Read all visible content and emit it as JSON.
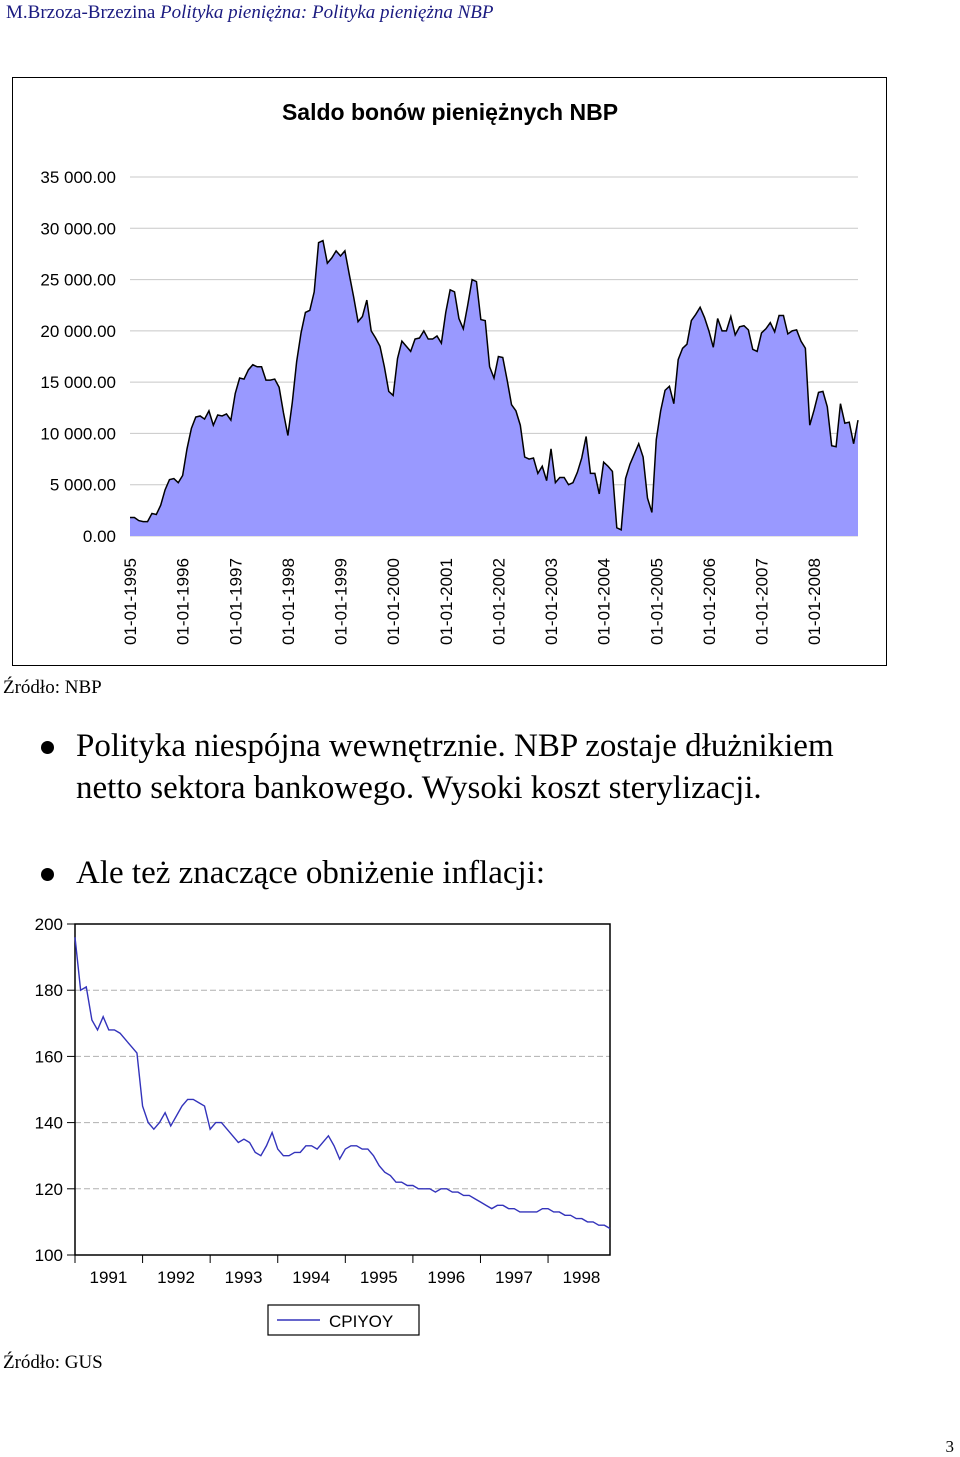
{
  "header": {
    "author": "M.Brzoza-Brzezina",
    "title": "Polityka pieniężna: Polityka pieniężna NBP"
  },
  "chart_data": [
    {
      "type": "area",
      "title": "Saldo bonów pieniężnych NBP",
      "ylim": [
        0,
        35000
      ],
      "yticks": [
        "0.00",
        "5 000.00",
        "10 000.00",
        "15 000.00",
        "20 000.00",
        "25 000.00",
        "30 000.00",
        "35 000.00"
      ],
      "ytick_values": [
        0,
        5000,
        10000,
        15000,
        20000,
        25000,
        30000,
        35000
      ],
      "xticks": [
        "01-01-1995",
        "01-01-1996",
        "01-01-1997",
        "01-01-1998",
        "01-01-1999",
        "01-01-2000",
        "01-01-2001",
        "01-01-2002",
        "01-01-2003",
        "01-01-2004",
        "01-01-2005",
        "01-01-2006",
        "01-01-2007",
        "01-01-2008"
      ],
      "x_start": "1995-01",
      "x_step": "month",
      "grid": true,
      "fill_color": "#9999ff",
      "values": [
        1800,
        1800,
        1500,
        1400,
        1400,
        2200,
        2100,
        3000,
        4500,
        5500,
        5600,
        5200,
        5900,
        8500,
        10500,
        11600,
        11700,
        11400,
        12200,
        10800,
        11800,
        11700,
        11900,
        11300,
        13900,
        15400,
        15300,
        16200,
        16700,
        16500,
        16500,
        15200,
        15200,
        15300,
        14500,
        12000,
        9800,
        13000,
        17000,
        19800,
        21800,
        22000,
        23800,
        28600,
        28800,
        26600,
        27100,
        27800,
        27300,
        27800,
        25500,
        23300,
        20900,
        21400,
        23000,
        20000,
        19300,
        18500,
        16500,
        14100,
        13700,
        17300,
        19000,
        18500,
        18000,
        19200,
        19300,
        20000,
        19200,
        19200,
        19500,
        18800,
        21800,
        24000,
        23800,
        21200,
        20200,
        22500,
        25000,
        24800,
        21100,
        21000,
        16500,
        15400,
        17500,
        17400,
        15200,
        12800,
        12200,
        10800,
        7700,
        7500,
        7600,
        6100,
        6800,
        5400,
        8500,
        5200,
        5700,
        5700,
        5000,
        5200,
        6200,
        7600,
        9700,
        6100,
        6100,
        4100,
        7200,
        6800,
        6300,
        800,
        600,
        5600,
        7000,
        8000,
        9000,
        7700,
        3700,
        2300,
        9400,
        12200,
        14200,
        14600,
        12900,
        17200,
        18300,
        18700,
        21000,
        21600,
        22300,
        21300,
        20000,
        18400,
        21200,
        20000,
        20000,
        21400,
        19600,
        20400,
        20500,
        20100,
        18200,
        18000,
        19800,
        20200,
        20800,
        19900,
        21500,
        21500,
        19700,
        20000,
        20100,
        19000,
        18300,
        10800,
        12300,
        14000,
        14100,
        12600,
        8800,
        8700,
        12900,
        11000,
        11100,
        9000,
        11300
      ]
    },
    {
      "type": "line",
      "ylim": [
        100,
        200
      ],
      "yticks": [
        "100",
        "120",
        "140",
        "160",
        "180",
        "200"
      ],
      "ytick_values": [
        100,
        120,
        140,
        160,
        180,
        200
      ],
      "xticks": [
        "1991",
        "1992",
        "1993",
        "1994",
        "1995",
        "1996",
        "1997",
        "1998"
      ],
      "x_start": "1991-01",
      "x_step": "month",
      "grid": true,
      "series": [
        {
          "name": "CPIYOY",
          "color": "#3333bb",
          "values": [
            196,
            180,
            181,
            171,
            168,
            172,
            168,
            168,
            167,
            165,
            163,
            161,
            145,
            140,
            138,
            140,
            143,
            139,
            142,
            145,
            147,
            147,
            146,
            145,
            138,
            140,
            140,
            138,
            136,
            134,
            135,
            134,
            131,
            130,
            133,
            137,
            132,
            130,
            130,
            131,
            131,
            133,
            133,
            132,
            134,
            136,
            133,
            129,
            132,
            133,
            133,
            132,
            132,
            130,
            127,
            125,
            124,
            122,
            122,
            121,
            121,
            120,
            120,
            120,
            119,
            120,
            120,
            119,
            119,
            118,
            118,
            117,
            116,
            115,
            114,
            115,
            115,
            114,
            114,
            113,
            113,
            113,
            113,
            114,
            114,
            113,
            113,
            112,
            112,
            111,
            111,
            110,
            110,
            109,
            109,
            108
          ]
        }
      ]
    }
  ],
  "sources": {
    "nbp": "Źródło: NBP",
    "gus": "Źródło: GUS"
  },
  "bullets": [
    [
      "Polityka niespójna wewnętrznie. NBP zostaje dłużnikiem",
      "netto sektora bankowego. Wysoki koszt sterylizacji."
    ],
    [
      "Ale też znaczące obniżenie inflacji:"
    ]
  ],
  "page_number": "3"
}
